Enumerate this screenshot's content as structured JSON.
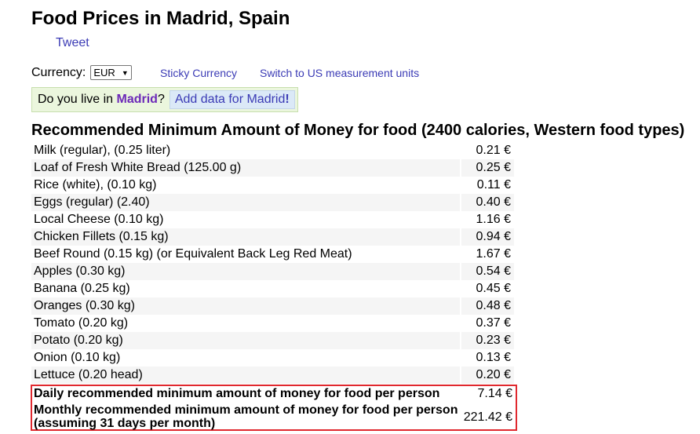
{
  "page": {
    "title": "Food Prices in Madrid, Spain",
    "tweet_label": "Tweet"
  },
  "currency": {
    "label": "Currency:",
    "selected": "EUR",
    "sticky_link": "Sticky Currency",
    "units_link": "Switch to US measurement units"
  },
  "ask": {
    "prefix": "Do you live in ",
    "city": "Madrid",
    "suffix": "?",
    "button_text": "Add data for Madrid",
    "button_bang": "!"
  },
  "section": {
    "title": "Recommended Minimum Amount of Money for food (2400 calories, Western food types)"
  },
  "items": [
    {
      "name": "Milk (regular), (0.25 liter)",
      "price": "0.21 €"
    },
    {
      "name": "Loaf of Fresh White Bread (125.00 g)",
      "price": "0.25 €"
    },
    {
      "name": "Rice (white), (0.10 kg)",
      "price": "0.11 €"
    },
    {
      "name": "Eggs (regular) (2.40)",
      "price": "0.40 €"
    },
    {
      "name": "Local Cheese (0.10 kg)",
      "price": "1.16 €"
    },
    {
      "name": "Chicken Fillets (0.15 kg)",
      "price": "0.94 €"
    },
    {
      "name": "Beef Round (0.15 kg) (or Equivalent Back Leg Red Meat)",
      "price": "1.67 €"
    },
    {
      "name": "Apples (0.30 kg)",
      "price": "0.54 €"
    },
    {
      "name": "Banana (0.25 kg)",
      "price": "0.45 €"
    },
    {
      "name": "Oranges (0.30 kg)",
      "price": "0.48 €"
    },
    {
      "name": "Tomato (0.20 kg)",
      "price": "0.37 €"
    },
    {
      "name": "Potato (0.20 kg)",
      "price": "0.23 €"
    },
    {
      "name": "Onion (0.10 kg)",
      "price": "0.13 €"
    },
    {
      "name": "Lettuce (0.20 head)",
      "price": "0.20 €"
    }
  ],
  "summary": {
    "daily_label": "Daily recommended minimum amount of money for food per person",
    "daily_value": "7.14 €",
    "monthly_label_1": "Monthly recommended minimum amount of money for food per person",
    "monthly_label_2": "(assuming 31 days per month)",
    "monthly_value": "221.42 €"
  },
  "colors": {
    "link": "#3b3bb5",
    "city": "#6d2ab8",
    "ask_bg": "#ebf6dd",
    "highlight_border": "#e0282e",
    "row_stripe": "#f5f5f5"
  }
}
